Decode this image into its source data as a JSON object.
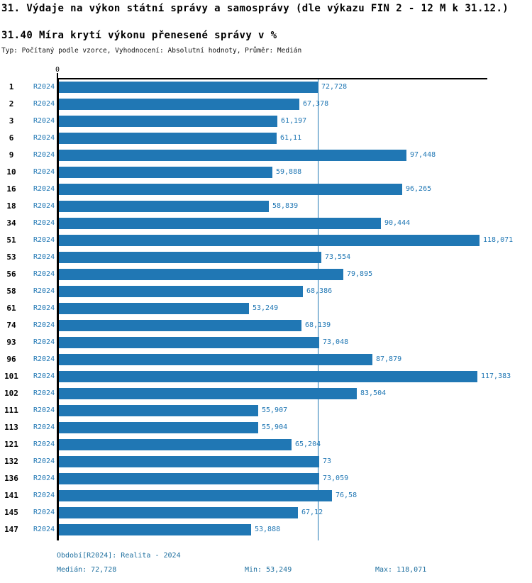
{
  "title": "31. Výdaje na výkon státní správy a samosprávy (dle výkazu FIN 2 - 12 M k 31.12.)",
  "subtitle": "31.40 Míra krytí výkonu přenesené správy v %",
  "meta": "Typ: Počítaný podle vzorce, Vyhodnocení: Absolutní hodnoty, Průměr: Medián",
  "axis": {
    "zero_label": "0",
    "xmin": 0,
    "xmax": 120
  },
  "colors": {
    "bar": "#2077b4",
    "label_blue": "#2077b4",
    "median_line": "#2077b4",
    "axis_black": "#000000",
    "footer_blue": "#1e6f9f"
  },
  "chart_data": {
    "type": "bar",
    "orientation": "horizontal",
    "title": "31.40 Míra krytí výkonu přenesené správy v %",
    "xlabel": "",
    "ylabel": "",
    "xlim": [
      0,
      120
    ],
    "grid": false,
    "median_reference_line": 72.728,
    "categories": [
      "1",
      "2",
      "3",
      "6",
      "9",
      "10",
      "16",
      "18",
      "34",
      "51",
      "53",
      "56",
      "58",
      "61",
      "74",
      "93",
      "96",
      "101",
      "102",
      "111",
      "113",
      "121",
      "132",
      "136",
      "141",
      "145",
      "147"
    ],
    "series": [
      {
        "name": "R2024",
        "values": [
          72.728,
          67.378,
          61.197,
          61.11,
          97.448,
          59.888,
          96.265,
          58.839,
          90.444,
          118.071,
          73.554,
          79.895,
          68.386,
          53.249,
          68.139,
          73.048,
          87.879,
          117.383,
          83.504,
          55.907,
          55.904,
          65.204,
          73,
          73.059,
          76.58,
          67.12,
          53.888
        ],
        "value_labels": [
          "72,728",
          "67,378",
          "61,197",
          "61,11",
          "97,448",
          "59,888",
          "96,265",
          "58,839",
          "90,444",
          "118,071",
          "73,554",
          "79,895",
          "68,386",
          "53,249",
          "68,139",
          "73,048",
          "87,879",
          "117,383",
          "83,504",
          "55,907",
          "55,904",
          "65,204",
          "73",
          "73,059",
          "76,58",
          "67,12",
          "53,888"
        ]
      }
    ]
  },
  "footer": {
    "period": "Období[R2024]: Realita - 2024",
    "median": "Medián: 72,728",
    "min": "Min: 53,249",
    "max": "Max: 118,071"
  }
}
